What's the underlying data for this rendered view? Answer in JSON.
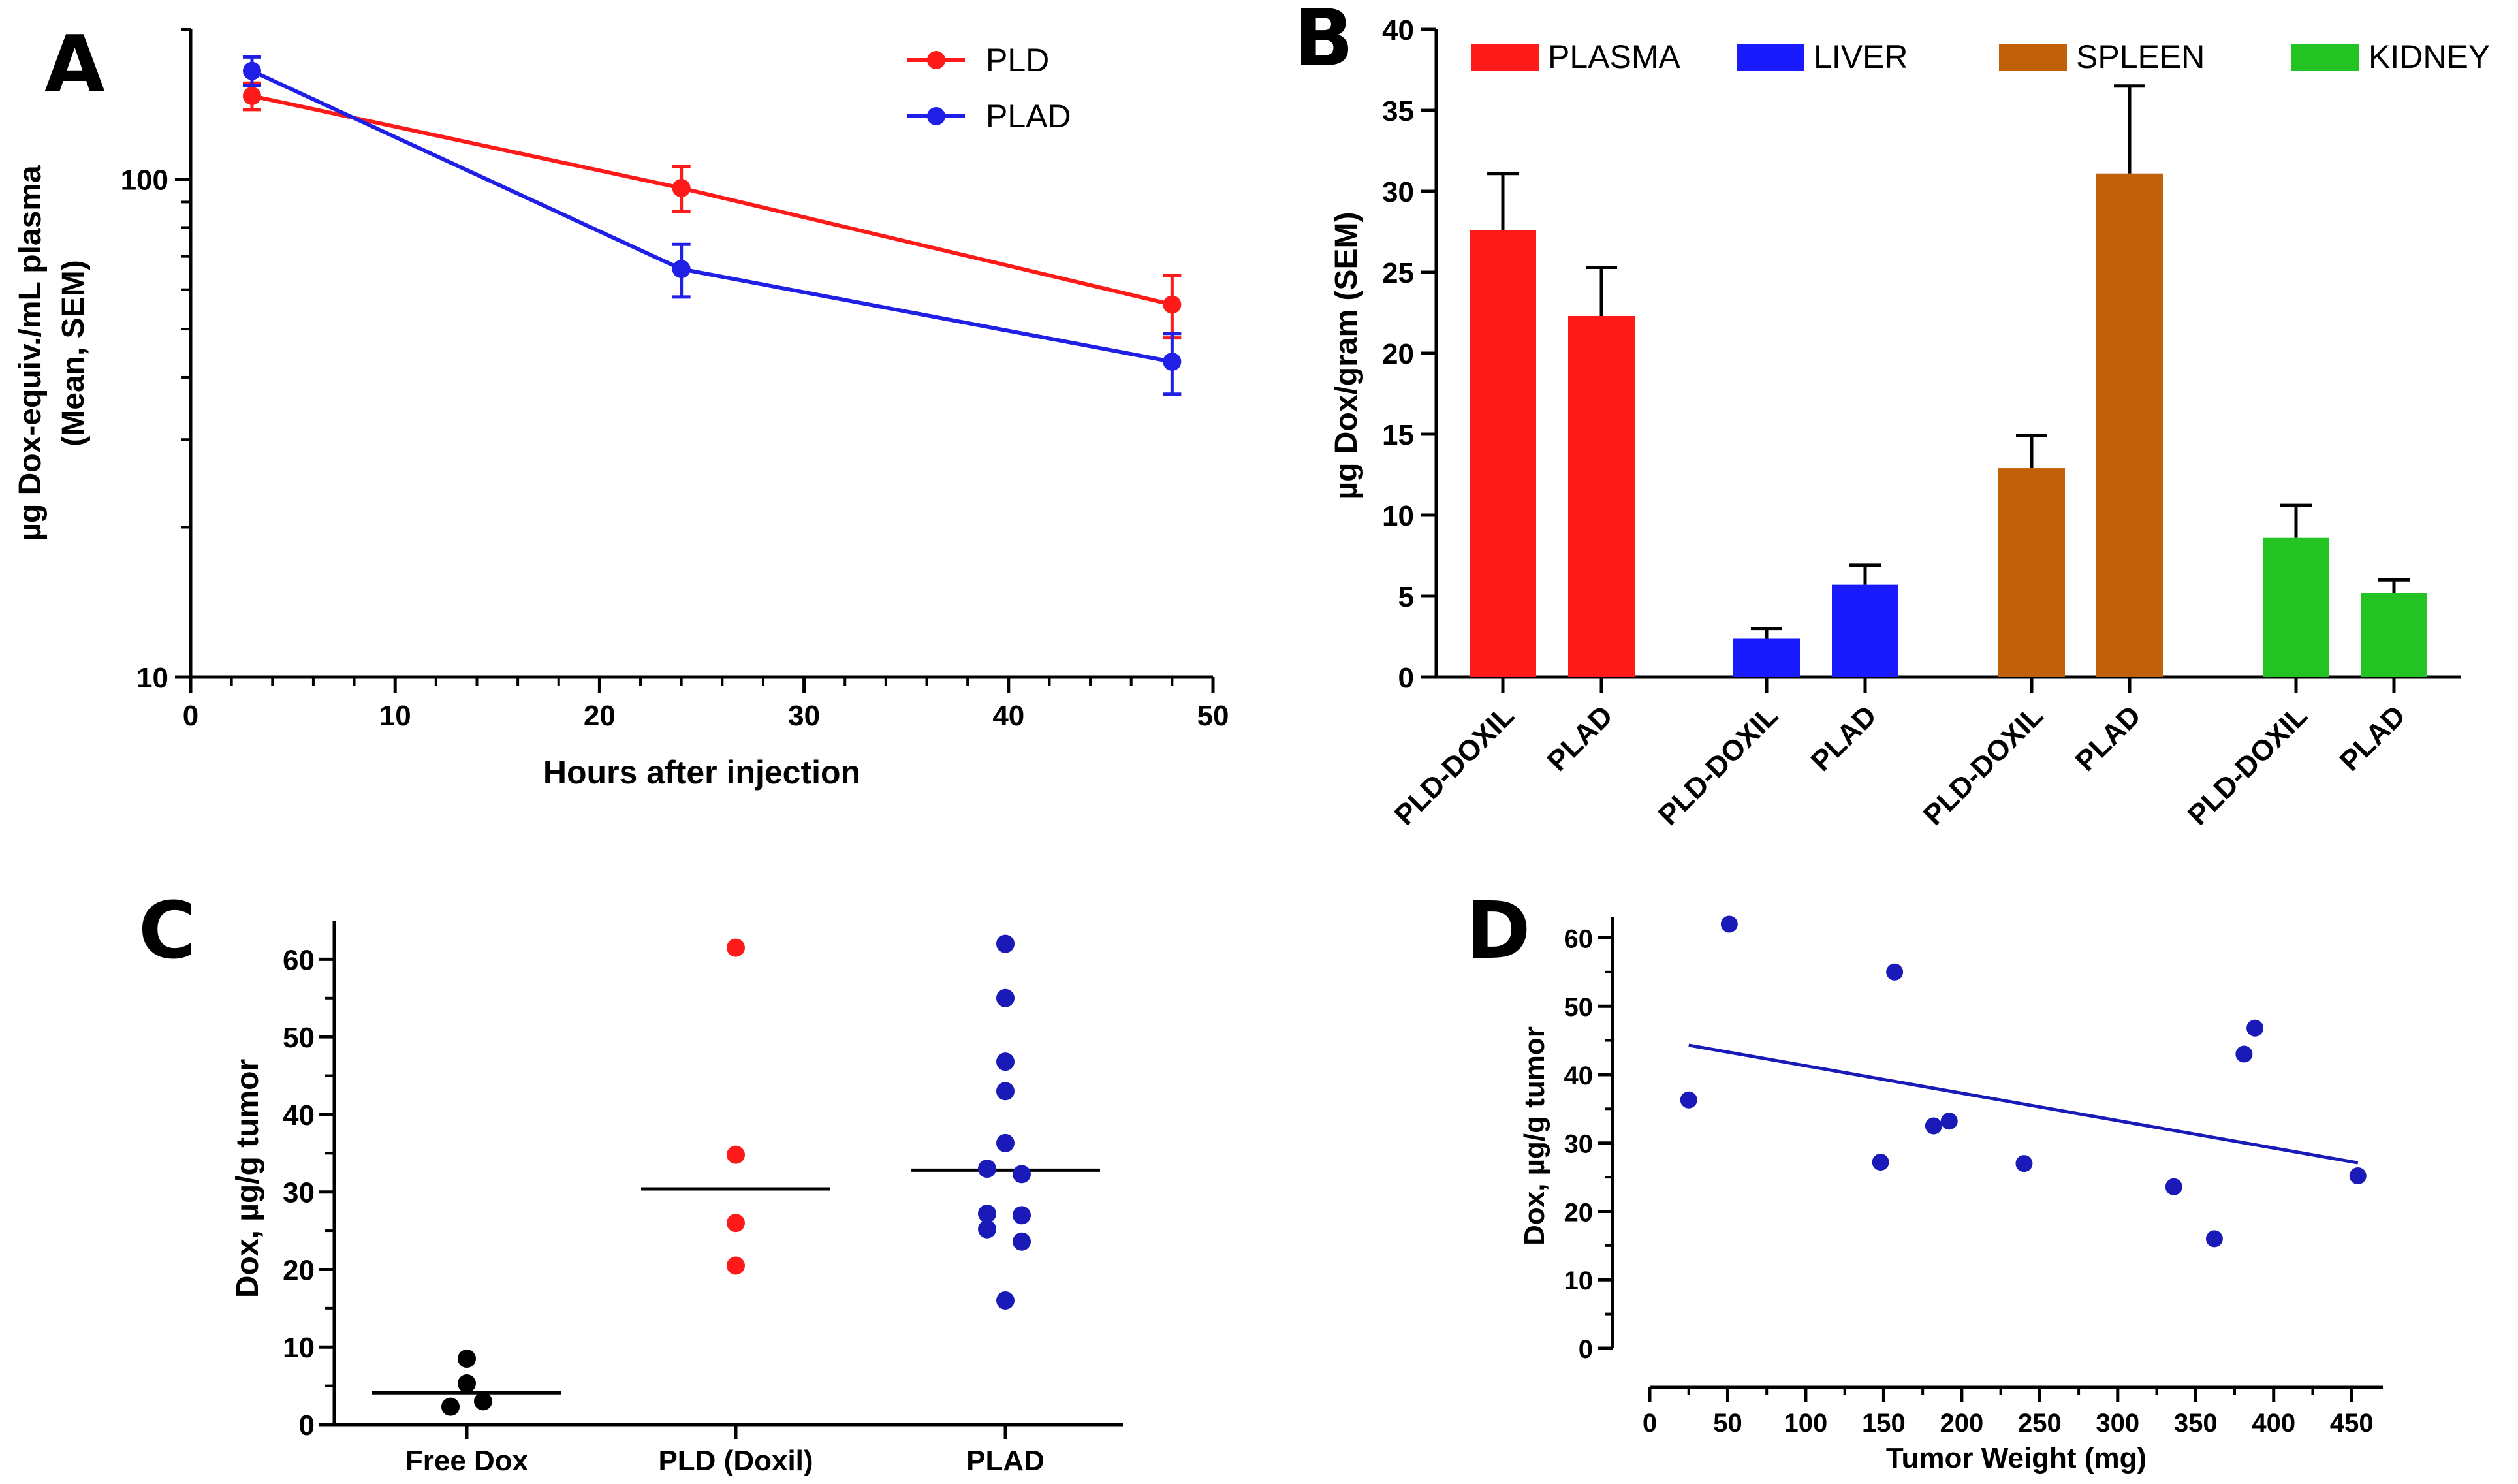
{
  "chart_data": [
    {
      "panel": "A",
      "type": "line",
      "xlabel": "Hours after injection",
      "ylabel": "µg Dox-equiv./mL plasma",
      "ylabel2": "(Mean, SEM)",
      "yscale": "log",
      "xlim": [
        0,
        50
      ],
      "ylim": [
        10,
        200
      ],
      "xticks": [
        "0",
        "10",
        "20",
        "30",
        "40",
        "50"
      ],
      "yticks": [
        "10",
        "100"
      ],
      "legend_position": "top-right",
      "series": [
        {
          "name": "PLD",
          "color": "#ff1a1a",
          "x": [
            3,
            24,
            48
          ],
          "y": [
            147,
            96,
            56
          ],
          "err": [
            9,
            10,
            8
          ]
        },
        {
          "name": "PLAD",
          "color": "#1f1fe6",
          "x": [
            3,
            24,
            48
          ],
          "y": [
            165,
            66,
            43
          ],
          "err": [
            11,
            8,
            6
          ]
        }
      ]
    },
    {
      "panel": "B",
      "type": "bar",
      "ylabel": "µg Dox/gram (SEM)",
      "ylim": [
        0,
        40
      ],
      "yticks": [
        "0",
        "5",
        "10",
        "15",
        "20",
        "25",
        "30",
        "35",
        "40"
      ],
      "legend_position": "top",
      "groups": [
        {
          "name": "PLASMA",
          "color": "#ff1a1a",
          "bars": [
            {
              "label": "PLD-DOXIL",
              "value": 27.6,
              "err": 3.5
            },
            {
              "label": "PLAD",
              "value": 22.3,
              "err": 3.0
            }
          ]
        },
        {
          "name": "LIVER",
          "color": "#1a1aff",
          "bars": [
            {
              "label": "PLD-DOXIL",
              "value": 2.4,
              "err": 0.6
            },
            {
              "label": "PLAD",
              "value": 5.7,
              "err": 1.2
            }
          ]
        },
        {
          "name": "SPLEEN",
          "color": "#c0600a",
          "bars": [
            {
              "label": "PLD-DOXIL",
              "value": 12.9,
              "err": 2.0
            },
            {
              "label": "PLAD",
              "value": 31.1,
              "err": 5.4
            }
          ]
        },
        {
          "name": "KIDNEY",
          "color": "#22c322",
          "bars": [
            {
              "label": "PLD-DOXIL",
              "value": 8.6,
              "err": 2.0
            },
            {
              "label": "PLAD",
              "value": 5.2,
              "err": 0.8
            }
          ]
        }
      ]
    },
    {
      "panel": "C",
      "type": "scatter",
      "ylabel": "Dox, µg/g tumor",
      "ylim": [
        0,
        65
      ],
      "yticks": [
        "0",
        "10",
        "20",
        "30",
        "40",
        "50",
        "60"
      ],
      "groups": [
        {
          "label": "Free Dox",
          "color": "#000000",
          "values": [
            8.5,
            5.3,
            2.3,
            3.0
          ],
          "mean": 4.1
        },
        {
          "label": "PLD (Doxil)",
          "color": "#ff1a1a",
          "values": [
            61.5,
            34.8,
            26.0,
            20.5
          ],
          "mean": 30.4
        },
        {
          "label": "PLAD",
          "color": "#1a1ab8",
          "values": [
            62.0,
            55.0,
            46.8,
            43.0,
            36.3,
            33.0,
            32.3,
            27.2,
            27.0,
            25.2,
            23.6,
            16.0
          ],
          "mean": 32.8
        }
      ]
    },
    {
      "panel": "D",
      "type": "scatter",
      "xlabel": "Tumor Weight (mg)",
      "ylabel": "Dox, µg/g tumor",
      "xlim": [
        0,
        470
      ],
      "ylim": [
        0,
        63
      ],
      "xticks": [
        "0",
        "50",
        "100",
        "150",
        "200",
        "250",
        "300",
        "350",
        "400",
        "450"
      ],
      "yticks": [
        "0",
        "10",
        "20",
        "30",
        "40",
        "50",
        "60"
      ],
      "color": "#1a1ab8",
      "x": [
        25,
        51,
        148,
        157,
        182,
        192,
        240,
        336,
        362,
        381,
        388,
        454
      ],
      "y": [
        36.3,
        62.0,
        27.2,
        55.0,
        32.5,
        33.2,
        27.0,
        23.6,
        16.0,
        43.0,
        46.8,
        25.2
      ],
      "fit": {
        "x": [
          25,
          454
        ],
        "y": [
          44.3,
          27.1
        ]
      }
    }
  ]
}
